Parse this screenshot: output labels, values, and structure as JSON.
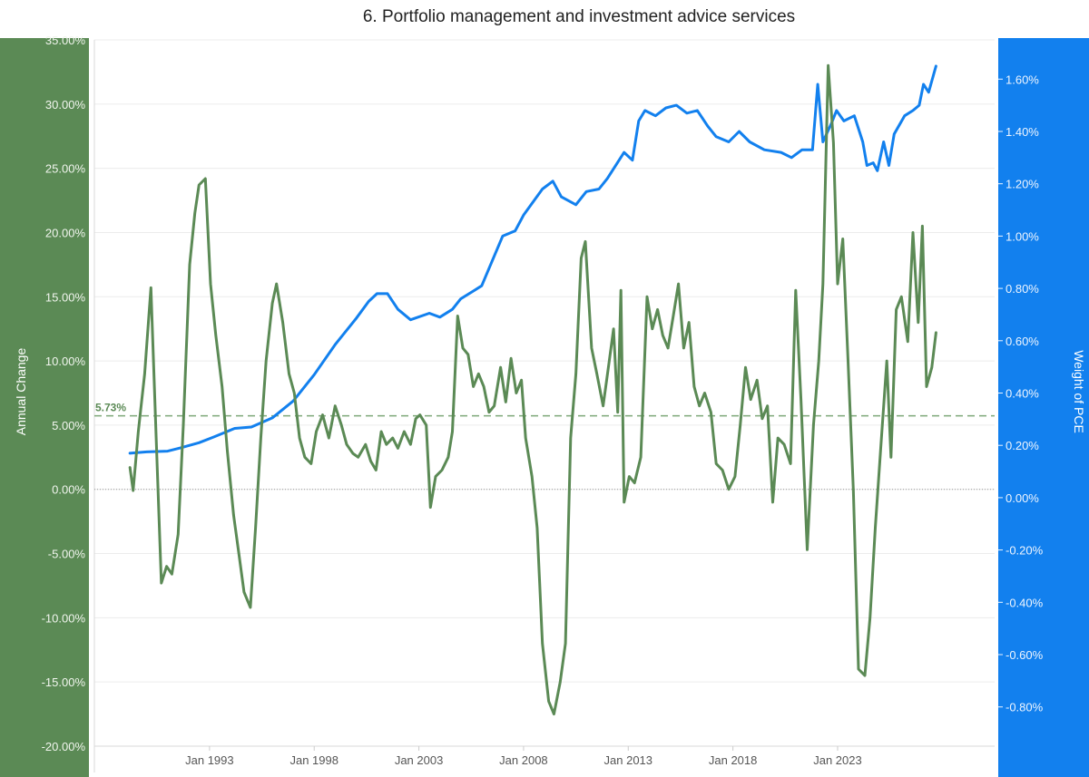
{
  "chart_data": {
    "type": "line",
    "title": "6. Portfolio management and investment advice services",
    "x_ticks": [
      "Jan 1993",
      "Jan 1998",
      "Jan 2003",
      "Jan 2008",
      "Jan 2013",
      "Jan 2018",
      "Jan 2023"
    ],
    "x_range": [
      1987.5,
      2030.5
    ],
    "left_axis": {
      "label": "Annual Change",
      "ticks": [
        "35.00%",
        "30.00%",
        "25.00%",
        "20.00%",
        "15.00%",
        "10.00%",
        "5.00%",
        "0.00%",
        "-5.00%",
        "-10.00%",
        "-15.00%",
        "-20.00%"
      ],
      "range": [
        -20,
        35
      ],
      "color": "#5b8a55"
    },
    "right_axis": {
      "label": "Weight of PCE",
      "ticks": [
        "1.60%",
        "1.40%",
        "1.20%",
        "1.00%",
        "0.80%",
        "0.60%",
        "0.40%",
        "0.20%",
        "0.00%",
        "-0.20%",
        "-0.40%",
        "-0.60%",
        "-0.80%"
      ],
      "range": [
        -0.95,
        1.75
      ],
      "color": "#1280ee"
    },
    "reference_line": {
      "value": 5.73,
      "label": "5.73%"
    },
    "grid": true,
    "series": [
      {
        "axis": "left",
        "color": "#5b8a55",
        "points": [
          [
            1989.2,
            1.7
          ],
          [
            1989.35,
            -0.1
          ],
          [
            1989.6,
            4.5
          ],
          [
            1989.9,
            9.0
          ],
          [
            1990.2,
            15.7
          ],
          [
            1990.45,
            4.0
          ],
          [
            1990.7,
            -7.3
          ],
          [
            1990.95,
            -6.0
          ],
          [
            1991.2,
            -6.6
          ],
          [
            1991.5,
            -3.5
          ],
          [
            1991.75,
            5.0
          ],
          [
            1992.05,
            17.5
          ],
          [
            1992.3,
            21.5
          ],
          [
            1992.5,
            23.7
          ],
          [
            1992.8,
            24.2
          ],
          [
            1993.05,
            16.0
          ],
          [
            1993.3,
            12.0
          ],
          [
            1993.6,
            8.0
          ],
          [
            1993.85,
            3.0
          ],
          [
            1994.15,
            -2.0
          ],
          [
            1994.4,
            -5.0
          ],
          [
            1994.65,
            -8.0
          ],
          [
            1994.95,
            -9.2
          ],
          [
            1995.2,
            -3.0
          ],
          [
            1995.45,
            4.0
          ],
          [
            1995.7,
            10.0
          ],
          [
            1996.0,
            14.5
          ],
          [
            1996.2,
            16.0
          ],
          [
            1996.5,
            13.0
          ],
          [
            1996.8,
            9.0
          ],
          [
            1997.05,
            7.5
          ],
          [
            1997.3,
            4.0
          ],
          [
            1997.55,
            2.5
          ],
          [
            1997.85,
            2.0
          ],
          [
            1998.1,
            4.5
          ],
          [
            1998.4,
            5.8
          ],
          [
            1998.7,
            4.0
          ],
          [
            1999.0,
            6.5
          ],
          [
            1999.3,
            5.0
          ],
          [
            1999.55,
            3.5
          ],
          [
            1999.85,
            2.8
          ],
          [
            2000.1,
            2.5
          ],
          [
            2000.45,
            3.5
          ],
          [
            2000.7,
            2.2
          ],
          [
            2000.95,
            1.5
          ],
          [
            2001.2,
            4.5
          ],
          [
            2001.45,
            3.5
          ],
          [
            2001.75,
            4.0
          ],
          [
            2002.0,
            3.2
          ],
          [
            2002.3,
            4.5
          ],
          [
            2002.6,
            3.5
          ],
          [
            2002.85,
            5.5
          ],
          [
            2003.05,
            5.8
          ],
          [
            2003.35,
            5.0
          ],
          [
            2003.55,
            -1.4
          ],
          [
            2003.8,
            1.0
          ],
          [
            2004.1,
            1.5
          ],
          [
            2004.4,
            2.5
          ],
          [
            2004.6,
            4.5
          ],
          [
            2004.85,
            13.5
          ],
          [
            2005.1,
            11.0
          ],
          [
            2005.35,
            10.5
          ],
          [
            2005.6,
            8.0
          ],
          [
            2005.85,
            9.0
          ],
          [
            2006.1,
            8.0
          ],
          [
            2006.35,
            6.0
          ],
          [
            2006.6,
            6.5
          ],
          [
            2006.9,
            9.5
          ],
          [
            2007.15,
            6.8
          ],
          [
            2007.4,
            10.2
          ],
          [
            2007.65,
            7.5
          ],
          [
            2007.9,
            8.5
          ],
          [
            2008.1,
            4.0
          ],
          [
            2008.4,
            1.0
          ],
          [
            2008.65,
            -3.0
          ],
          [
            2008.9,
            -12.0
          ],
          [
            2009.2,
            -16.5
          ],
          [
            2009.45,
            -17.5
          ],
          [
            2009.75,
            -15.0
          ],
          [
            2010.0,
            -12.0
          ],
          [
            2010.25,
            4.0
          ],
          [
            2010.5,
            9.0
          ],
          [
            2010.75,
            18.0
          ],
          [
            2010.95,
            19.3
          ],
          [
            2011.25,
            11.0
          ],
          [
            2011.5,
            9.0
          ],
          [
            2011.8,
            6.5
          ],
          [
            2012.05,
            9.5
          ],
          [
            2012.3,
            12.5
          ],
          [
            2012.5,
            6.0
          ],
          [
            2012.65,
            15.5
          ],
          [
            2012.8,
            -1.0
          ],
          [
            2013.05,
            1.0
          ],
          [
            2013.3,
            0.5
          ],
          [
            2013.6,
            2.5
          ],
          [
            2013.9,
            15.0
          ],
          [
            2014.15,
            12.5
          ],
          [
            2014.4,
            14.0
          ],
          [
            2014.65,
            12.0
          ],
          [
            2014.9,
            11.0
          ],
          [
            2015.15,
            13.5
          ],
          [
            2015.4,
            16.0
          ],
          [
            2015.65,
            11.0
          ],
          [
            2015.9,
            13.0
          ],
          [
            2016.15,
            8.0
          ],
          [
            2016.4,
            6.5
          ],
          [
            2016.65,
            7.5
          ],
          [
            2016.95,
            6.0
          ],
          [
            2017.2,
            2.0
          ],
          [
            2017.5,
            1.5
          ],
          [
            2017.8,
            0.0
          ],
          [
            2018.1,
            1.0
          ],
          [
            2018.35,
            5.0
          ],
          [
            2018.6,
            9.5
          ],
          [
            2018.85,
            7.0
          ],
          [
            2019.15,
            8.5
          ],
          [
            2019.4,
            5.5
          ],
          [
            2019.65,
            6.5
          ],
          [
            2019.9,
            -1.0
          ],
          [
            2020.15,
            4.0
          ],
          [
            2020.45,
            3.5
          ],
          [
            2020.75,
            2.0
          ],
          [
            2021.0,
            15.5
          ],
          [
            2021.25,
            7.0
          ],
          [
            2021.55,
            -4.7
          ],
          [
            2021.85,
            5.0
          ],
          [
            2022.1,
            10.0
          ],
          [
            2022.3,
            16.0
          ],
          [
            2022.55,
            33.0
          ],
          [
            2022.8,
            27.0
          ],
          [
            2023.0,
            16.0
          ],
          [
            2023.25,
            19.5
          ],
          [
            2023.5,
            10.0
          ],
          [
            2023.75,
            0.0
          ],
          [
            2024.0,
            -14.0
          ],
          [
            2024.3,
            -14.5
          ],
          [
            2024.55,
            -10.0
          ],
          [
            2024.8,
            -3.0
          ],
          [
            2025.05,
            3.0
          ],
          [
            2025.35,
            10.0
          ],
          [
            2025.55,
            2.5
          ],
          [
            2025.8,
            14.0
          ],
          [
            2026.05,
            15.0
          ],
          [
            2026.35,
            11.5
          ],
          [
            2026.6,
            20.0
          ],
          [
            2026.85,
            13.0
          ],
          [
            2027.05,
            20.5
          ],
          [
            2027.25,
            8.0
          ],
          [
            2027.5,
            9.5
          ],
          [
            2027.7,
            12.2
          ]
        ]
      },
      {
        "axis": "right",
        "color": "#1280ee",
        "points": [
          [
            1989.2,
            0.17
          ],
          [
            1990.0,
            0.175
          ],
          [
            1991.0,
            0.178
          ],
          [
            1991.6,
            0.19
          ],
          [
            1992.5,
            0.21
          ],
          [
            1993.2,
            0.232
          ],
          [
            1994.2,
            0.265
          ],
          [
            1995.0,
            0.27
          ],
          [
            1996.0,
            0.305
          ],
          [
            1997.0,
            0.37
          ],
          [
            1998.0,
            0.47
          ],
          [
            1999.0,
            0.585
          ],
          [
            2000.0,
            0.685
          ],
          [
            2000.6,
            0.75
          ],
          [
            2001.0,
            0.78
          ],
          [
            2001.5,
            0.78
          ],
          [
            2002.0,
            0.72
          ],
          [
            2002.6,
            0.68
          ],
          [
            2003.5,
            0.705
          ],
          [
            2004.0,
            0.69
          ],
          [
            2004.6,
            0.72
          ],
          [
            2005.0,
            0.76
          ],
          [
            2005.6,
            0.79
          ],
          [
            2006.0,
            0.81
          ],
          [
            2007.0,
            1.0
          ],
          [
            2007.6,
            1.02
          ],
          [
            2008.0,
            1.08
          ],
          [
            2008.9,
            1.18
          ],
          [
            2009.4,
            1.21
          ],
          [
            2009.8,
            1.15
          ],
          [
            2010.5,
            1.12
          ],
          [
            2011.0,
            1.17
          ],
          [
            2011.6,
            1.18
          ],
          [
            2012.0,
            1.22
          ],
          [
            2012.8,
            1.32
          ],
          [
            2013.2,
            1.29
          ],
          [
            2013.5,
            1.44
          ],
          [
            2013.8,
            1.48
          ],
          [
            2014.3,
            1.46
          ],
          [
            2014.8,
            1.49
          ],
          [
            2015.3,
            1.5
          ],
          [
            2015.8,
            1.47
          ],
          [
            2016.3,
            1.48
          ],
          [
            2016.8,
            1.42
          ],
          [
            2017.2,
            1.38
          ],
          [
            2017.8,
            1.36
          ],
          [
            2018.3,
            1.4
          ],
          [
            2018.8,
            1.36
          ],
          [
            2019.5,
            1.33
          ],
          [
            2020.3,
            1.32
          ],
          [
            2020.8,
            1.3
          ],
          [
            2021.3,
            1.33
          ],
          [
            2021.8,
            1.33
          ],
          [
            2022.05,
            1.58
          ],
          [
            2022.3,
            1.36
          ],
          [
            2022.7,
            1.43
          ],
          [
            2022.95,
            1.48
          ],
          [
            2023.3,
            1.44
          ],
          [
            2023.8,
            1.46
          ],
          [
            2024.2,
            1.36
          ],
          [
            2024.4,
            1.27
          ],
          [
            2024.7,
            1.28
          ],
          [
            2024.9,
            1.25
          ],
          [
            2025.2,
            1.36
          ],
          [
            2025.45,
            1.27
          ],
          [
            2025.7,
            1.39
          ],
          [
            2026.2,
            1.46
          ],
          [
            2026.6,
            1.48
          ],
          [
            2026.9,
            1.5
          ],
          [
            2027.1,
            1.58
          ],
          [
            2027.35,
            1.55
          ],
          [
            2027.7,
            1.65
          ]
        ]
      }
    ]
  }
}
